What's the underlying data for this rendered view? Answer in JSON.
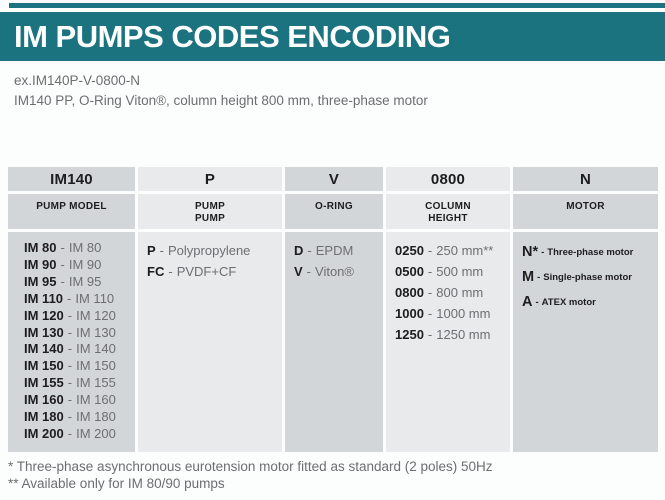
{
  "header": {
    "title": "IM PUMPS CODES ENCODING"
  },
  "example": {
    "code": "ex.IM140P-V-0800-N",
    "description": "IM140 PP, O-Ring Viton®, column height 800 mm, three-phase motor"
  },
  "table": {
    "separator": "-",
    "columns": [
      {
        "code": "IM140",
        "label": "PUMP MODEL",
        "entries": [
          {
            "code": "IM 80",
            "desc": "IM 80"
          },
          {
            "code": "IM 90",
            "desc": "IM 90"
          },
          {
            "code": "IM 95",
            "desc": "IM 95"
          },
          {
            "code": "IM 110",
            "desc": "IM 110"
          },
          {
            "code": "IM 120",
            "desc": "IM 120"
          },
          {
            "code": "IM 130",
            "desc": "IM 130"
          },
          {
            "code": "IM 140",
            "desc": "IM 140"
          },
          {
            "code": "IM 150",
            "desc": "IM 150"
          },
          {
            "code": "IM 155",
            "desc": "IM 155"
          },
          {
            "code": "IM 160",
            "desc": "IM 160"
          },
          {
            "code": "IM 180",
            "desc": "IM 180"
          },
          {
            "code": "IM 200",
            "desc": "IM 200"
          }
        ]
      },
      {
        "code": "P",
        "label": "PUMP\nPUMP",
        "entries": [
          {
            "code": "P",
            "desc": "Polypropylene"
          },
          {
            "code": "FC",
            "desc": "PVDF+CF"
          }
        ]
      },
      {
        "code": "V",
        "label": "O-RING",
        "entries": [
          {
            "code": "D",
            "desc": "EPDM"
          },
          {
            "code": "V",
            "desc": "Viton®"
          }
        ]
      },
      {
        "code": "0800",
        "label": "COLUMN\nHEIGHT",
        "entries": [
          {
            "code": "0250",
            "desc": "250 mm**"
          },
          {
            "code": "0500",
            "desc": "500 mm"
          },
          {
            "code": "0800",
            "desc": "800 mm"
          },
          {
            "code": "1000",
            "desc": "1000 mm"
          },
          {
            "code": "1250",
            "desc": "1250 mm"
          }
        ]
      },
      {
        "code": "N",
        "label": "MOTOR",
        "entries": [
          {
            "code": "N*",
            "desc": "Three-phase motor"
          },
          {
            "code": "M",
            "desc": "Single-phase motor"
          },
          {
            "code": "A",
            "desc": "ATEX motor"
          }
        ]
      }
    ]
  },
  "footnotes": [
    "* Three-phase asynchronous eurotension motor fitted as standard (2 poles) 50Hz",
    "** Available only for IM 80/90 pumps"
  ],
  "colors": {
    "accent_teal": "#1B7380",
    "cell_gray_dark": "#D3D6D8",
    "cell_gray_light": "#E8EAEB",
    "text_dark": "#1D1D1F",
    "text_gray": "#6D6E71"
  }
}
